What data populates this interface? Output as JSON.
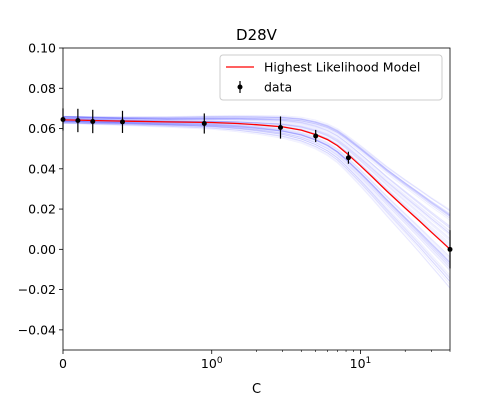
{
  "chart_data": {
    "type": "line",
    "title": "D28V",
    "xlabel": "C",
    "ylabel": "",
    "x_scale": "symlog",
    "xlim": [
      0,
      40
    ],
    "ylim": [
      -0.05,
      0.1
    ],
    "yticks": [
      -0.04,
      -0.02,
      0.0,
      0.02,
      0.04,
      0.06,
      0.08,
      0.1
    ],
    "ytick_labels": [
      "−0.04",
      "−0.02",
      "0.00",
      "0.02",
      "0.04",
      "0.06",
      "0.08",
      "0.10"
    ],
    "xticks": [
      {
        "value": 0,
        "base": "0",
        "exp": ""
      },
      {
        "value": 1,
        "base": "10",
        "exp": "0"
      },
      {
        "value": 10,
        "base": "10",
        "exp": "1"
      }
    ],
    "grid": false,
    "legend_position": "top-right",
    "series": [
      {
        "name": "Highest Likelihood Model",
        "kind": "line",
        "color": "#ff0000",
        "x": [
          0,
          0.1,
          0.2,
          0.4,
          0.7,
          1.0,
          1.5,
          2.0,
          3.0,
          4.0,
          5.0,
          6.0,
          7.0,
          8.0,
          10.0,
          12.0,
          15.0,
          20.0,
          25.0,
          30.0,
          35.0,
          40.0
        ],
        "y": [
          0.0643,
          0.0642,
          0.064,
          0.0637,
          0.0633,
          0.063,
          0.0625,
          0.0619,
          0.0608,
          0.0592,
          0.057,
          0.0545,
          0.0515,
          0.048,
          0.0415,
          0.036,
          0.029,
          0.0205,
          0.014,
          0.0085,
          0.004,
          0.0
        ]
      },
      {
        "name": "data",
        "kind": "errorbar",
        "color": "#000000",
        "x": [
          0,
          0.1,
          0.2,
          0.4,
          0.95,
          2.9,
          5.0,
          8.3,
          40.0
        ],
        "y": [
          0.0645,
          0.064,
          0.0635,
          0.0633,
          0.0625,
          0.0605,
          0.0563,
          0.0455,
          0.0
        ],
        "yerr": [
          0.0055,
          0.0058,
          0.0058,
          0.0055,
          0.005,
          0.0055,
          0.003,
          0.003,
          0.0095
        ]
      }
    ],
    "posterior_samples": {
      "color": "#0000ff",
      "count": 60
    }
  }
}
